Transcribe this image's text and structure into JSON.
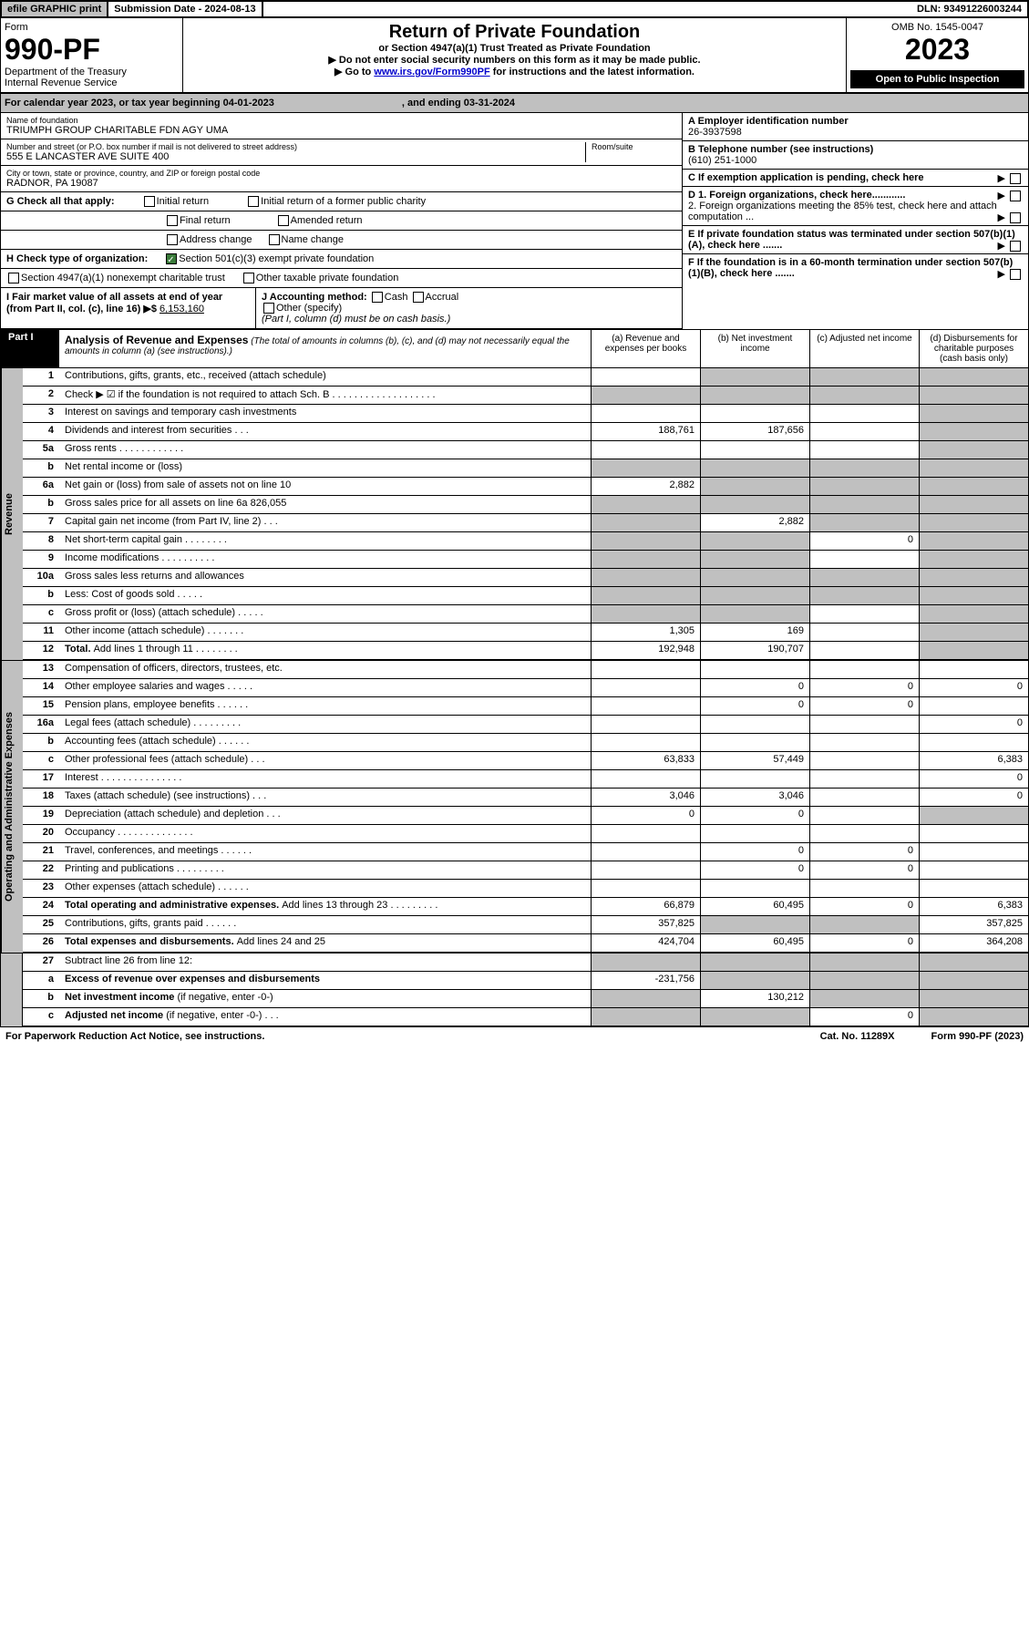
{
  "top": {
    "efile": "efile GRAPHIC print",
    "submission": "Submission Date - 2024-08-13",
    "dln": "DLN: 93491226003244"
  },
  "header": {
    "form_label": "Form",
    "form_num": "990-PF",
    "dept": "Department of the Treasury",
    "irs": "Internal Revenue Service",
    "title": "Return of Private Foundation",
    "subtitle": "or Section 4947(a)(1) Trust Treated as Private Foundation",
    "note1": "▶ Do not enter social security numbers on this form as it may be made public.",
    "note2_pre": "▶ Go to ",
    "note2_link": "www.irs.gov/Form990PF",
    "note2_post": " for instructions and the latest information.",
    "omb": "OMB No. 1545-0047",
    "year": "2023",
    "open": "Open to Public Inspection"
  },
  "cal_year": {
    "text1": "For calendar year 2023, or tax year beginning 04-01-2023",
    "text2": ", and ending 03-31-2024"
  },
  "foundation": {
    "name_label": "Name of foundation",
    "name": "TRIUMPH GROUP CHARITABLE FDN AGY UMA",
    "addr_label": "Number and street (or P.O. box number if mail is not delivered to street address)",
    "addr": "555 E LANCASTER AVE SUITE 400",
    "room_label": "Room/suite",
    "city_label": "City or town, state or province, country, and ZIP or foreign postal code",
    "city": "RADNOR, PA  19087",
    "ein_label": "A Employer identification number",
    "ein": "26-3937598",
    "phone_label": "B Telephone number (see instructions)",
    "phone": "(610) 251-1000",
    "c_label": "C If exemption application is pending, check here",
    "d1": "D 1. Foreign organizations, check here............",
    "d2": "2. Foreign organizations meeting the 85% test, check here and attach computation ...",
    "e_label": "E  If private foundation status was terminated under section 507(b)(1)(A), check here .......",
    "f_label": "F  If the foundation is in a 60-month termination under section 507(b)(1)(B), check here .......",
    "g_label": "G Check all that apply:",
    "g_opts": [
      "Initial return",
      "Final return",
      "Address change",
      "Initial return of a former public charity",
      "Amended return",
      "Name change"
    ],
    "h_label": "H Check type of organization:",
    "h_opt1": "Section 501(c)(3) exempt private foundation",
    "h_opt2": "Section 4947(a)(1) nonexempt charitable trust",
    "h_opt3": "Other taxable private foundation",
    "i_label": "I Fair market value of all assets at end of year (from Part II, col. (c), line 16)",
    "i_val": "6,153,160",
    "j_label": "J Accounting method:",
    "j_cash": "Cash",
    "j_accrual": "Accrual",
    "j_other": "Other (specify)",
    "j_note": "(Part I, column (d) must be on cash basis.)"
  },
  "part1": {
    "label": "Part I",
    "title": "Analysis of Revenue and Expenses",
    "title_note": "(The total of amounts in columns (b), (c), and (d) may not necessarily equal the amounts in column (a) (see instructions).)",
    "col_a": "(a)   Revenue and expenses per books",
    "col_b": "(b)  Net investment income",
    "col_c": "(c)  Adjusted net income",
    "col_d": "(d)  Disbursements for charitable purposes (cash basis only)"
  },
  "sections": {
    "revenue": "Revenue",
    "expenses": "Operating and Administrative Expenses"
  },
  "rows": [
    {
      "n": "1",
      "label": "Contributions, gifts, grants, etc., received (attach schedule)",
      "a": "",
      "b": "grey",
      "c": "grey",
      "d": "grey"
    },
    {
      "n": "2",
      "label": "Check ▶ ☑ if the foundation is not required to attach Sch. B  . . . . . . . . . . . . . . . . . . .",
      "a": "grey",
      "b": "grey",
      "c": "grey",
      "d": "grey"
    },
    {
      "n": "3",
      "label": "Interest on savings and temporary cash investments",
      "a": "",
      "b": "",
      "c": "",
      "d": "grey"
    },
    {
      "n": "4",
      "label": "Dividends and interest from securities   . . .",
      "a": "188,761",
      "b": "187,656",
      "c": "",
      "d": "grey"
    },
    {
      "n": "5a",
      "label": "Gross rents    . . . . . . . . . . . .",
      "a": "",
      "b": "",
      "c": "",
      "d": "grey"
    },
    {
      "n": "b",
      "label": "Net rental income or (loss)  ",
      "a": "grey",
      "b": "grey",
      "c": "grey",
      "d": "grey"
    },
    {
      "n": "6a",
      "label": "Net gain or (loss) from sale of assets not on line 10",
      "a": "2,882",
      "b": "grey",
      "c": "grey",
      "d": "grey"
    },
    {
      "n": "b",
      "label": "Gross sales price for all assets on line 6a           826,055",
      "a": "grey",
      "b": "grey",
      "c": "grey",
      "d": "grey"
    },
    {
      "n": "7",
      "label": "Capital gain net income (from Part IV, line 2)   . . .",
      "a": "grey",
      "b": "2,882",
      "c": "grey",
      "d": "grey"
    },
    {
      "n": "8",
      "label": "Net short-term capital gain  . . . . . . . .",
      "a": "grey",
      "b": "grey",
      "c": "0",
      "d": "grey"
    },
    {
      "n": "9",
      "label": "Income modifications . . . . . . . . . .",
      "a": "grey",
      "b": "grey",
      "c": "",
      "d": "grey"
    },
    {
      "n": "10a",
      "label": "Gross sales less returns and allowances",
      "a": "grey",
      "b": "grey",
      "c": "grey",
      "d": "grey"
    },
    {
      "n": "b",
      "label": "Less: Cost of goods sold   . . . . .",
      "a": "grey",
      "b": "grey",
      "c": "grey",
      "d": "grey"
    },
    {
      "n": "c",
      "label": "Gross profit or (loss) (attach schedule)   . . . . .",
      "a": "grey",
      "b": "grey",
      "c": "",
      "d": "grey"
    },
    {
      "n": "11",
      "label": "Other income (attach schedule)   . . . . . . .",
      "a": "1,305",
      "b": "169",
      "c": "",
      "d": "grey"
    },
    {
      "n": "12",
      "label_bold": "Total. ",
      "label": "Add lines 1 through 11  . . . . . . . .",
      "a": "192,948",
      "b": "190,707",
      "c": "",
      "d": "grey"
    }
  ],
  "exp_rows": [
    {
      "n": "13",
      "label": "Compensation of officers, directors, trustees, etc.",
      "a": "",
      "b": "",
      "c": "",
      "d": ""
    },
    {
      "n": "14",
      "label": "Other employee salaries and wages   . . . . .",
      "a": "",
      "b": "0",
      "c": "0",
      "d": "0"
    },
    {
      "n": "15",
      "label": "Pension plans, employee benefits  . . . . . .",
      "a": "",
      "b": "0",
      "c": "0",
      "d": ""
    },
    {
      "n": "16a",
      "label": "Legal fees (attach schedule) . . . . . . . . .",
      "a": "",
      "b": "",
      "c": "",
      "d": "0"
    },
    {
      "n": "b",
      "label": "Accounting fees (attach schedule) . . . . . .",
      "a": "",
      "b": "",
      "c": "",
      "d": ""
    },
    {
      "n": "c",
      "label": "Other professional fees (attach schedule)   . . .",
      "a": "63,833",
      "b": "57,449",
      "c": "",
      "d": "6,383"
    },
    {
      "n": "17",
      "label": "Interest  . . . . . . . . . . . . . . .",
      "a": "",
      "b": "",
      "c": "",
      "d": "0"
    },
    {
      "n": "18",
      "label": "Taxes (attach schedule) (see instructions)   . . .",
      "a": "3,046",
      "b": "3,046",
      "c": "",
      "d": "0"
    },
    {
      "n": "19",
      "label": "Depreciation (attach schedule) and depletion   . . .",
      "a": "0",
      "b": "0",
      "c": "",
      "d": "grey"
    },
    {
      "n": "20",
      "label": "Occupancy . . . . . . . . . . . . . .",
      "a": "",
      "b": "",
      "c": "",
      "d": ""
    },
    {
      "n": "21",
      "label": "Travel, conferences, and meetings . . . . . .",
      "a": "",
      "b": "0",
      "c": "0",
      "d": ""
    },
    {
      "n": "22",
      "label": "Printing and publications . . . . . . . . .",
      "a": "",
      "b": "0",
      "c": "0",
      "d": ""
    },
    {
      "n": "23",
      "label": "Other expenses (attach schedule) . . . . . .",
      "a": "",
      "b": "",
      "c": "",
      "d": ""
    },
    {
      "n": "24",
      "label_bold": "Total operating and administrative expenses. ",
      "label": "Add lines 13 through 23  . . . . . . . . .",
      "a": "66,879",
      "b": "60,495",
      "c": "0",
      "d": "6,383"
    },
    {
      "n": "25",
      "label": "Contributions, gifts, grants paid   . . . . . .",
      "a": "357,825",
      "b": "grey",
      "c": "grey",
      "d": "357,825"
    },
    {
      "n": "26",
      "label_bold": "Total expenses and disbursements. ",
      "label": "Add lines 24 and 25",
      "a": "424,704",
      "b": "60,495",
      "c": "0",
      "d": "364,208"
    }
  ],
  "bottom_rows": [
    {
      "n": "27",
      "label": "Subtract line 26 from line 12:",
      "a": "grey",
      "b": "grey",
      "c": "grey",
      "d": "grey"
    },
    {
      "n": "a",
      "label_bold": "Excess of revenue over expenses and disbursements",
      "a": "-231,756",
      "b": "grey",
      "c": "grey",
      "d": "grey"
    },
    {
      "n": "b",
      "label_bold": "Net investment income ",
      "label": "(if negative, enter -0-)",
      "a": "grey",
      "b": "130,212",
      "c": "grey",
      "d": "grey"
    },
    {
      "n": "c",
      "label_bold": "Adjusted net income ",
      "label": "(if negative, enter -0-)  . . .",
      "a": "grey",
      "b": "grey",
      "c": "0",
      "d": "grey"
    }
  ],
  "footer": {
    "left": "For Paperwork Reduction Act Notice, see instructions.",
    "mid": "Cat. No. 11289X",
    "right": "Form 990-PF (2023)"
  }
}
